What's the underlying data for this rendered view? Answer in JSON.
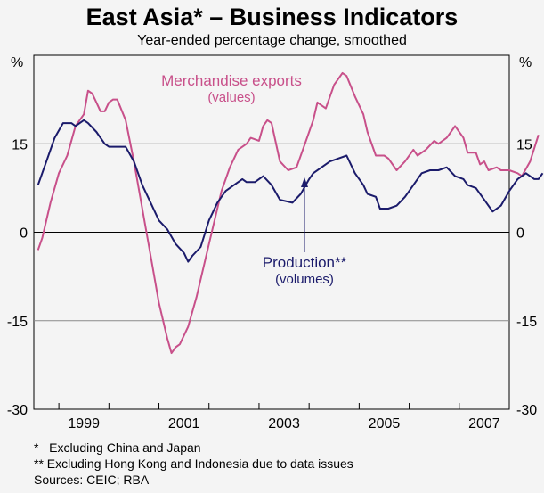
{
  "header": {
    "title": "East Asia* – Business Indicators",
    "subtitle": "Year-ended percentage change, smoothed",
    "unit_left": "%",
    "unit_right": "%"
  },
  "annotations": {
    "exports_main": "Merchandise exports",
    "exports_sub": "(values)",
    "production_main": "Production**",
    "production_sub": "(volumes)"
  },
  "footnotes": [
    "*   Excluding China and Japan",
    "** Excluding Hong Kong and Indonesia due to data issues",
    "Sources: CEIC; RBA"
  ],
  "colors": {
    "exports": "#c8508a",
    "production": "#1b1b6b",
    "background": "#f4f4f4",
    "grid": "#8a8a8a",
    "zero_line": "#000000"
  },
  "chart_data": {
    "type": "line",
    "x_start": "1998-07",
    "x_end": "2008-01",
    "ylim": [
      -30,
      30
    ],
    "y_ticks": [
      30,
      15,
      0,
      -15,
      -30
    ],
    "y_tick_labels": [
      "",
      "15",
      "0",
      "-15",
      "-30"
    ],
    "x_tick_labels": [
      "1999",
      "2001",
      "2003",
      "2005",
      "2007"
    ],
    "x_tick_years": [
      1999,
      2001,
      2003,
      2005,
      2007
    ],
    "grid": true,
    "series": [
      {
        "name": "Merchandise exports",
        "points": [
          [
            "1998-08",
            -3
          ],
          [
            "1998-09",
            -1
          ],
          [
            "1998-11",
            5
          ],
          [
            "1999-01",
            10
          ],
          [
            "1999-03",
            13
          ],
          [
            "1999-05",
            18
          ],
          [
            "1999-07",
            20
          ],
          [
            "1999-08",
            24
          ],
          [
            "1999-09",
            23.5
          ],
          [
            "1999-10",
            22
          ],
          [
            "1999-11",
            20.5
          ],
          [
            "1999-12",
            20.5
          ],
          [
            "2000-01",
            22
          ],
          [
            "2000-02",
            22.5
          ],
          [
            "2000-03",
            22.5
          ],
          [
            "2000-05",
            19
          ],
          [
            "2000-07",
            12
          ],
          [
            "2000-09",
            4
          ],
          [
            "2000-11",
            -4
          ],
          [
            "2001-01",
            -12
          ],
          [
            "2001-03",
            -18
          ],
          [
            "2001-04",
            -20.5
          ],
          [
            "2001-05",
            -19.5
          ],
          [
            "2001-06",
            -19
          ],
          [
            "2001-08",
            -16
          ],
          [
            "2001-10",
            -11
          ],
          [
            "2002-01",
            -2
          ],
          [
            "2002-04",
            7
          ],
          [
            "2002-06",
            11
          ],
          [
            "2002-08",
            14
          ],
          [
            "2002-10",
            15
          ],
          [
            "2002-11",
            16
          ],
          [
            "2003-01",
            15.5
          ],
          [
            "2003-02",
            18
          ],
          [
            "2003-03",
            19
          ],
          [
            "2003-04",
            18.5
          ],
          [
            "2003-06",
            12
          ],
          [
            "2003-08",
            10.5
          ],
          [
            "2003-10",
            11
          ],
          [
            "2003-12",
            15
          ],
          [
            "2004-02",
            19
          ],
          [
            "2004-03",
            22
          ],
          [
            "2004-05",
            21
          ],
          [
            "2004-07",
            25
          ],
          [
            "2004-09",
            27
          ],
          [
            "2004-10",
            26.5
          ],
          [
            "2004-12",
            23
          ],
          [
            "2005-02",
            20
          ],
          [
            "2005-03",
            17
          ],
          [
            "2005-05",
            13
          ],
          [
            "2005-07",
            13
          ],
          [
            "2005-08",
            12.5
          ],
          [
            "2005-10",
            10.5
          ],
          [
            "2005-12",
            12
          ],
          [
            "2006-02",
            14
          ],
          [
            "2006-03",
            13
          ],
          [
            "2006-05",
            14
          ],
          [
            "2006-07",
            15.5
          ],
          [
            "2006-08",
            15
          ],
          [
            "2006-10",
            16
          ],
          [
            "2006-12",
            18
          ],
          [
            "2007-02",
            16
          ],
          [
            "2007-03",
            13.5
          ],
          [
            "2007-05",
            13.5
          ],
          [
            "2007-06",
            11.5
          ],
          [
            "2007-07",
            12
          ],
          [
            "2007-08",
            10.5
          ],
          [
            "2007-10",
            11
          ],
          [
            "2007-11",
            10.5
          ],
          [
            "2008-01",
            10.5
          ],
          [
            "2008-03",
            10
          ],
          [
            "2008-04",
            9.5
          ],
          [
            "2008-06",
            12
          ],
          [
            "2008-08",
            16.5
          ]
        ]
      },
      {
        "name": "Production",
        "points": [
          [
            "1998-08",
            8
          ],
          [
            "1998-10",
            12
          ],
          [
            "1998-12",
            16
          ],
          [
            "1999-02",
            18.5
          ],
          [
            "1999-04",
            18.5
          ],
          [
            "1999-05",
            18
          ],
          [
            "1999-07",
            19
          ],
          [
            "1999-08",
            18.5
          ],
          [
            "1999-10",
            17
          ],
          [
            "1999-12",
            15
          ],
          [
            "2000-01",
            14.5
          ],
          [
            "2000-03",
            14.5
          ],
          [
            "2000-05",
            14.5
          ],
          [
            "2000-07",
            12
          ],
          [
            "2000-09",
            8
          ],
          [
            "2000-11",
            5
          ],
          [
            "2001-01",
            2
          ],
          [
            "2001-03",
            0.5
          ],
          [
            "2001-05",
            -2
          ],
          [
            "2001-07",
            -3.5
          ],
          [
            "2001-08",
            -5
          ],
          [
            "2001-09",
            -4
          ],
          [
            "2001-11",
            -2.5
          ],
          [
            "2002-01",
            2
          ],
          [
            "2002-03",
            5
          ],
          [
            "2002-05",
            7
          ],
          [
            "2002-07",
            8
          ],
          [
            "2002-09",
            9
          ],
          [
            "2002-10",
            8.5
          ],
          [
            "2002-12",
            8.5
          ],
          [
            "2003-02",
            9.5
          ],
          [
            "2003-04",
            8
          ],
          [
            "2003-06",
            5.5
          ],
          [
            "2003-09",
            5
          ],
          [
            "2003-11",
            6.5
          ],
          [
            "2004-01",
            9
          ],
          [
            "2004-02",
            10
          ],
          [
            "2004-04",
            11
          ],
          [
            "2004-06",
            12
          ],
          [
            "2004-08",
            12.5
          ],
          [
            "2004-10",
            13
          ],
          [
            "2004-12",
            10
          ],
          [
            "2005-02",
            8
          ],
          [
            "2005-03",
            6.5
          ],
          [
            "2005-05",
            6
          ],
          [
            "2005-06",
            4
          ],
          [
            "2005-08",
            4
          ],
          [
            "2005-10",
            4.5
          ],
          [
            "2005-12",
            6
          ],
          [
            "2006-02",
            8
          ],
          [
            "2006-04",
            10
          ],
          [
            "2006-06",
            10.5
          ],
          [
            "2006-08",
            10.5
          ],
          [
            "2006-10",
            11
          ],
          [
            "2006-12",
            9.5
          ],
          [
            "2007-02",
            9
          ],
          [
            "2007-03",
            8
          ],
          [
            "2007-05",
            7.5
          ],
          [
            "2007-07",
            5.5
          ],
          [
            "2007-09",
            3.5
          ],
          [
            "2007-11",
            4.5
          ],
          [
            "2008-01",
            7
          ],
          [
            "2008-03",
            9
          ],
          [
            "2008-05",
            10
          ],
          [
            "2008-07",
            9
          ],
          [
            "2008-08",
            9
          ],
          [
            "2008-09",
            10
          ]
        ]
      }
    ]
  }
}
